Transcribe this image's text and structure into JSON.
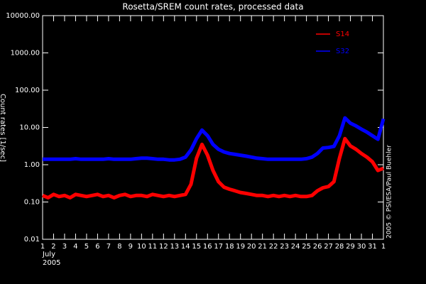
{
  "chart_data": {
    "type": "line",
    "title": "Rosetta/SREM count rates, processed data",
    "y_label": "Count rates [1/sec]",
    "x_month": "July",
    "x_year": "2005",
    "credit": "2005 © PSI/ESA/Paul Buehler",
    "log_y": true,
    "legend": "top-right",
    "x": [
      1,
      1.5,
      2,
      2.5,
      3,
      3.5,
      4,
      4.5,
      5,
      5.5,
      6,
      6.5,
      7,
      7.5,
      8,
      8.5,
      9,
      9.5,
      10,
      10.5,
      11,
      11.5,
      12,
      12.5,
      13,
      13.5,
      14,
      14.5,
      15,
      15.5,
      16,
      16.5,
      17,
      17.5,
      18,
      18.5,
      19,
      19.5,
      20,
      20.5,
      21,
      21.5,
      22,
      22.5,
      23,
      23.5,
      24,
      24.5,
      25,
      25.5,
      26,
      26.5,
      27,
      27.5,
      28,
      28.5,
      29,
      29.5,
      30,
      30.5,
      31,
      31.5,
      32
    ],
    "series": [
      {
        "name": "S14",
        "color": "#ff0000",
        "values": [
          0.15,
          0.13,
          0.16,
          0.14,
          0.15,
          0.13,
          0.16,
          0.15,
          0.14,
          0.15,
          0.16,
          0.14,
          0.15,
          0.13,
          0.15,
          0.16,
          0.14,
          0.15,
          0.15,
          0.14,
          0.16,
          0.15,
          0.14,
          0.15,
          0.14,
          0.15,
          0.16,
          0.3,
          1.5,
          3.5,
          1.8,
          0.7,
          0.35,
          0.25,
          0.22,
          0.2,
          0.18,
          0.17,
          0.16,
          0.15,
          0.15,
          0.14,
          0.15,
          0.14,
          0.15,
          0.14,
          0.15,
          0.14,
          0.14,
          0.15,
          0.2,
          0.24,
          0.26,
          0.35,
          1.5,
          5,
          3.2,
          2.6,
          2.0,
          1.6,
          1.2,
          0.7,
          0.8
        ]
      },
      {
        "name": "S32",
        "color": "#0000ff",
        "values": [
          1.4,
          1.4,
          1.4,
          1.4,
          1.4,
          1.4,
          1.45,
          1.4,
          1.4,
          1.4,
          1.4,
          1.4,
          1.45,
          1.4,
          1.4,
          1.4,
          1.4,
          1.45,
          1.5,
          1.5,
          1.45,
          1.4,
          1.4,
          1.35,
          1.35,
          1.4,
          1.6,
          2.5,
          5,
          8.5,
          6,
          3.5,
          2.6,
          2.2,
          2.0,
          1.9,
          1.8,
          1.7,
          1.6,
          1.5,
          1.45,
          1.4,
          1.4,
          1.4,
          1.4,
          1.4,
          1.4,
          1.4,
          1.45,
          1.6,
          2.0,
          2.8,
          2.9,
          3.1,
          6,
          18,
          13,
          11,
          9,
          7.5,
          6,
          4.8,
          17
        ]
      }
    ],
    "xlim": [
      1,
      32
    ],
    "xticks": [
      1,
      2,
      3,
      4,
      5,
      6,
      7,
      8,
      9,
      10,
      11,
      12,
      13,
      14,
      15,
      16,
      17,
      18,
      19,
      20,
      21,
      22,
      23,
      24,
      25,
      26,
      27,
      28,
      29,
      30,
      31,
      {
        "value": 32,
        "label": "1"
      }
    ],
    "ylim": [
      0.01,
      10000
    ],
    "yticks": [
      {
        "value": 0.01,
        "label": "0.01"
      },
      {
        "value": 0.1,
        "label": "0.10"
      },
      {
        "value": 1,
        "label": "1.00"
      },
      {
        "value": 10,
        "label": "10.00"
      },
      {
        "value": 100,
        "label": "100.00"
      },
      {
        "value": 1000,
        "label": "1000.00"
      },
      {
        "value": 10000,
        "label": "10000.00"
      }
    ]
  }
}
